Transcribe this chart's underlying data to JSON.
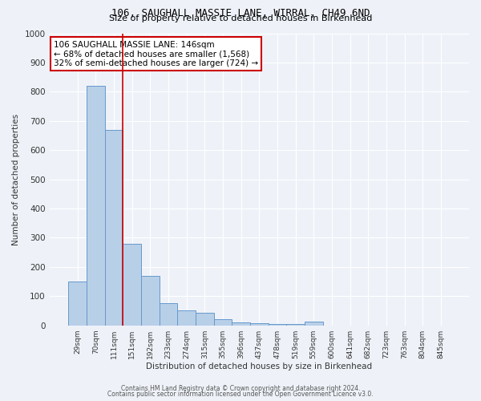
{
  "title1": "106, SAUGHALL MASSIE LANE, WIRRAL, CH49 6ND",
  "title2": "Size of property relative to detached houses in Birkenhead",
  "xlabel": "Distribution of detached houses by size in Birkenhead",
  "ylabel": "Number of detached properties",
  "categories": [
    "29sqm",
    "70sqm",
    "111sqm",
    "151sqm",
    "192sqm",
    "233sqm",
    "274sqm",
    "315sqm",
    "355sqm",
    "396sqm",
    "437sqm",
    "478sqm",
    "519sqm",
    "559sqm",
    "600sqm",
    "641sqm",
    "682sqm",
    "723sqm",
    "763sqm",
    "804sqm",
    "845sqm"
  ],
  "values": [
    150,
    820,
    670,
    280,
    170,
    75,
    50,
    42,
    20,
    10,
    8,
    5,
    5,
    13,
    0,
    0,
    0,
    0,
    0,
    0,
    0
  ],
  "bar_color": "#b8cfe8",
  "bar_edge_color": "#6699cc",
  "annotation_text_line1": "106 SAUGHALL MASSIE LANE: 146sqm",
  "annotation_text_line2": "← 68% of detached houses are smaller (1,568)",
  "annotation_text_line3": "32% of semi-detached houses are larger (724) →",
  "red_line_x": 2.5,
  "ylim": [
    0,
    1000
  ],
  "yticks": [
    0,
    100,
    200,
    300,
    400,
    500,
    600,
    700,
    800,
    900,
    1000
  ],
  "background_color": "#eef2f8",
  "grid_color": "#ffffff",
  "annotation_box_color": "#ffffff",
  "annotation_box_edge": "#cc0000",
  "footer1": "Contains HM Land Registry data © Crown copyright and database right 2024.",
  "footer2": "Contains public sector information licensed under the Open Government Licence v3.0."
}
